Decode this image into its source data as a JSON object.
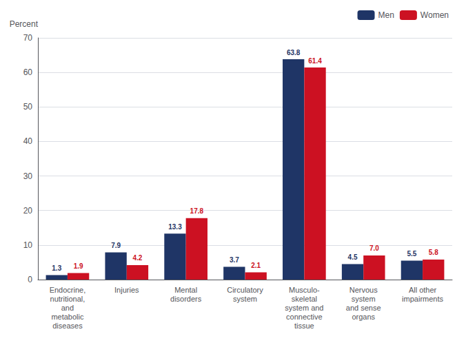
{
  "chart_data": {
    "type": "bar",
    "categories": [
      "Endocrine,\nnutritional,\nand\nmetabolic\ndiseases",
      "Injuries",
      "Mental\ndisorders",
      "Circulatory\nsystem",
      "Musculo-\nskeletal\nsystem and\nconnective\ntissue",
      "Nervous\nsystem\nand sense\norgans",
      "All other\nimpairments"
    ],
    "series": [
      {
        "name": "Men",
        "color": "#1f3566",
        "values": [
          1.3,
          7.9,
          13.3,
          3.7,
          63.8,
          4.5,
          5.5
        ],
        "value_labels": [
          "1.3",
          "7.9",
          "13.3",
          "3.7",
          "63.8",
          "4.5",
          "5.5"
        ]
      },
      {
        "name": "Women",
        "color": "#cc1122",
        "values": [
          1.9,
          4.2,
          17.8,
          2.1,
          61.4,
          7.0,
          5.8
        ],
        "value_labels": [
          "1.9",
          "4.2",
          "17.8",
          "2.1",
          "61.4",
          "7.0",
          "5.8"
        ]
      }
    ],
    "ylabel": "Percent",
    "ylim": [
      0,
      70
    ],
    "yticks": [
      0,
      10,
      20,
      30,
      40,
      50,
      60,
      70
    ],
    "grid": true,
    "legend": "upper right",
    "data_labels": true
  }
}
